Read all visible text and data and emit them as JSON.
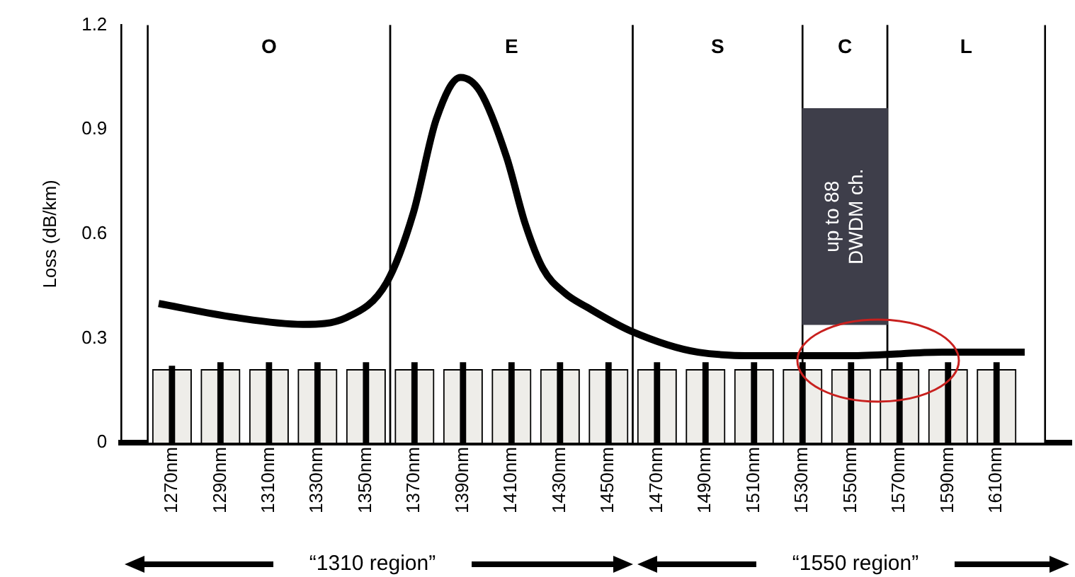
{
  "chart_data": {
    "type": "line",
    "ylabel": "Loss (dB/km)",
    "xlim": [
      1260,
      1630
    ],
    "ylim": [
      0,
      1.2
    ],
    "yticks": [
      0,
      0.3,
      0.6,
      0.9,
      1.2
    ],
    "xticks": [
      {
        "value": 1270,
        "label": "1270nm"
      },
      {
        "value": 1290,
        "label": "1290nm"
      },
      {
        "value": 1310,
        "label": "1310nm"
      },
      {
        "value": 1330,
        "label": "1330nm"
      },
      {
        "value": 1350,
        "label": "1350nm"
      },
      {
        "value": 1370,
        "label": "1370nm"
      },
      {
        "value": 1390,
        "label": "1390nm"
      },
      {
        "value": 1410,
        "label": "1410nm"
      },
      {
        "value": 1430,
        "label": "1430nm"
      },
      {
        "value": 1450,
        "label": "1450nm"
      },
      {
        "value": 1470,
        "label": "1470nm"
      },
      {
        "value": 1490,
        "label": "1490nm"
      },
      {
        "value": 1510,
        "label": "1510nm"
      },
      {
        "value": 1530,
        "label": "1530nm"
      },
      {
        "value": 1550,
        "label": "1550nm"
      },
      {
        "value": 1570,
        "label": "1570nm"
      },
      {
        "value": 1590,
        "label": "1590nm"
      },
      {
        "value": 1610,
        "label": "1610nm"
      }
    ],
    "series": [
      {
        "type": "bar",
        "color": "#eeede9",
        "x": [
          1270,
          1290,
          1310,
          1330,
          1350,
          1370,
          1390,
          1410,
          1430,
          1450,
          1470,
          1490,
          1510,
          1530,
          1550,
          1570,
          1590,
          1610
        ],
        "values": [
          0.21,
          0.21,
          0.21,
          0.21,
          0.21,
          0.21,
          0.21,
          0.21,
          0.21,
          0.21,
          0.21,
          0.21,
          0.21,
          0.21,
          0.21,
          0.21,
          0.21,
          0.21
        ]
      },
      {
        "type": "bar",
        "color": "#000000",
        "x": [
          1270,
          1290,
          1310,
          1330,
          1350,
          1370,
          1390,
          1410,
          1430,
          1450,
          1470,
          1490,
          1510,
          1530,
          1550,
          1570,
          1590,
          1610
        ],
        "values": [
          0.22,
          0.23,
          0.23,
          0.23,
          0.23,
          0.23,
          0.23,
          0.23,
          0.23,
          0.23,
          0.23,
          0.23,
          0.23,
          0.23,
          0.23,
          0.23,
          0.23,
          0.23
        ]
      },
      {
        "type": "bar",
        "color": "#3e3e4a",
        "x": [
          1547.5
        ],
        "base": [
          0.34
        ],
        "values": [
          0.62
        ]
      },
      {
        "color": "#000000",
        "x": [
          1264.5,
          1296,
          1324,
          1342,
          1358.5,
          1369.5,
          1379,
          1389,
          1397,
          1408,
          1415.6,
          1423,
          1432,
          1441,
          1459.5,
          1487,
          1514.5,
          1551,
          1587.6,
          1621.6
        ],
        "values": [
          0.4,
          0.36,
          0.34,
          0.36,
          0.46,
          0.66,
          0.93,
          1.05,
          1.01,
          0.82,
          0.63,
          0.5,
          0.43,
          0.39,
          0.32,
          0.26,
          0.25,
          0.25,
          0.26,
          0.26
        ]
      }
    ],
    "bands": [
      {
        "axis": "x",
        "from": 1260,
        "to": 1360,
        "label": "O",
        "color": "#ffffff"
      },
      {
        "axis": "x",
        "from": 1360,
        "to": 1460,
        "label": "E",
        "color": "#ffffff"
      },
      {
        "axis": "x",
        "from": 1460,
        "to": 1530,
        "label": "S",
        "color": "#ffffff"
      },
      {
        "axis": "x",
        "from": 1530,
        "to": 1565,
        "label": "C",
        "color": "#ffffff"
      },
      {
        "axis": "x",
        "from": 1565,
        "to": 1630,
        "label": "L",
        "color": "#ffffff"
      }
    ],
    "annotations": [
      "up to 88\nDWDM ch.",
      "“1310 region”",
      "“1550 region”"
    ]
  }
}
